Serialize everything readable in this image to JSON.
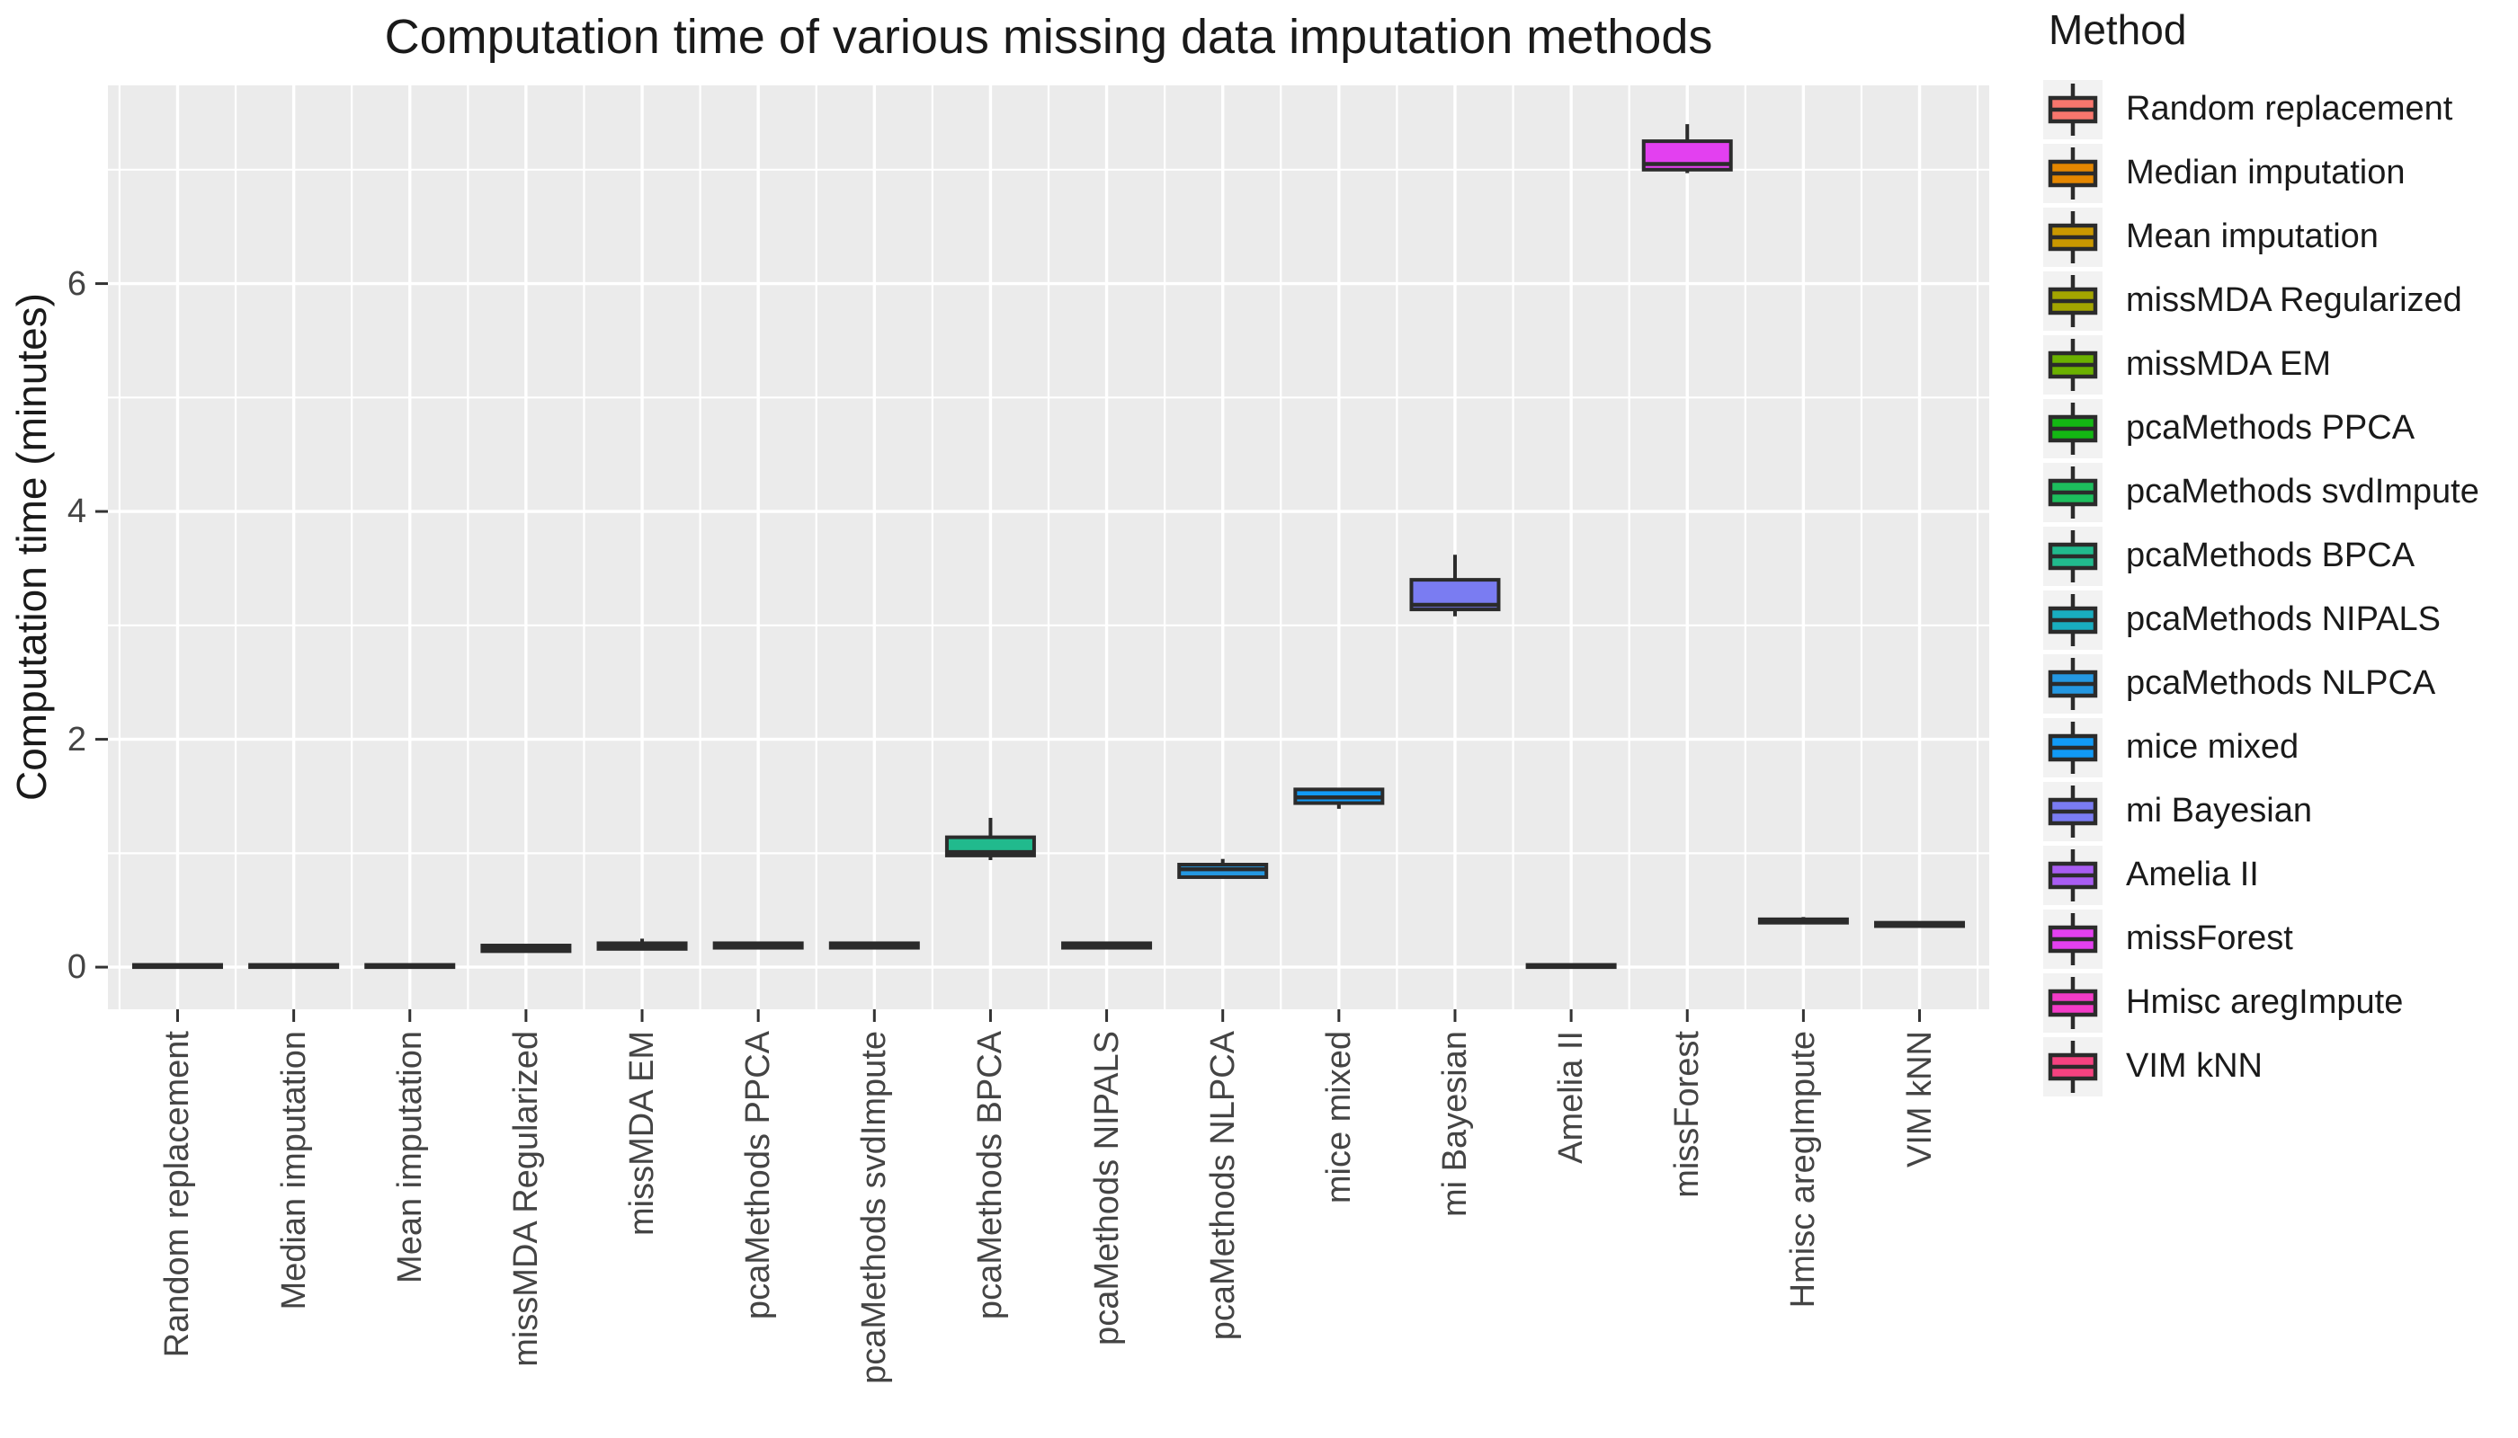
{
  "chart_data": {
    "type": "boxplot",
    "title": "Computation time of various missing data imputation methods",
    "xlabel": "",
    "ylabel": "Computation time (minutes)",
    "legend_title": "Method",
    "legend_position": "right",
    "grid": "on",
    "ylim": [
      -0.37,
      7.74
    ],
    "yticks": [
      0,
      2,
      4,
      6
    ],
    "yminor_gridlines": [
      1,
      3,
      5,
      7
    ],
    "colors_meta": {
      "panel_bg": "#EBEBEB",
      "grid_color": "#FFFFFF",
      "box_border": "#2B2B2B",
      "axis_text": "#444444",
      "tick_mark": "#333333",
      "legend_key_bg": "#F2F2F2"
    },
    "categories": [
      "Random replacement",
      "Median imputation",
      "Mean imputation",
      "missMDA Regularized",
      "missMDA EM",
      "pcaMethods PPCA",
      "pcaMethods svdImpute",
      "pcaMethods BPCA",
      "pcaMethods NIPALS",
      "pcaMethods NLPCA",
      "mice mixed",
      "mi Bayesian",
      "Amelia II",
      "missForest",
      "Hmisc aregImpute",
      "VIM kNN"
    ],
    "series": [
      {
        "name": "Random replacement",
        "color": "#F8766D",
        "low": 0.0,
        "q1": 0.0,
        "median": 0.01,
        "q3": 0.02,
        "high": 0.02
      },
      {
        "name": "Median imputation",
        "color": "#E58700",
        "low": 0.0,
        "q1": 0.0,
        "median": 0.01,
        "q3": 0.02,
        "high": 0.02
      },
      {
        "name": "Mean imputation",
        "color": "#C99800",
        "low": 0.0,
        "q1": 0.0,
        "median": 0.01,
        "q3": 0.02,
        "high": 0.02
      },
      {
        "name": "missMDA Regularized",
        "color": "#A3A500",
        "low": 0.13,
        "q1": 0.14,
        "median": 0.16,
        "q3": 0.19,
        "high": 0.2
      },
      {
        "name": "missMDA EM",
        "color": "#6BB100",
        "low": 0.15,
        "q1": 0.16,
        "median": 0.18,
        "q3": 0.21,
        "high": 0.25
      },
      {
        "name": "pcaMethods PPCA",
        "color": "#13B713",
        "low": 0.16,
        "q1": 0.17,
        "median": 0.19,
        "q3": 0.21,
        "high": 0.22
      },
      {
        "name": "pcaMethods svdImpute",
        "color": "#1DBE5D",
        "low": 0.16,
        "q1": 0.17,
        "median": 0.19,
        "q3": 0.21,
        "high": 0.22
      },
      {
        "name": "pcaMethods BPCA",
        "color": "#21BA8D",
        "low": 0.94,
        "q1": 0.98,
        "median": 1.01,
        "q3": 1.14,
        "high": 1.31
      },
      {
        "name": "pcaMethods NIPALS",
        "color": "#19ADBF",
        "low": 0.16,
        "q1": 0.17,
        "median": 0.19,
        "q3": 0.21,
        "high": 0.22
      },
      {
        "name": "pcaMethods NLPCA",
        "color": "#2498E2",
        "low": 0.78,
        "q1": 0.79,
        "median": 0.86,
        "q3": 0.9,
        "high": 0.95
      },
      {
        "name": "mice mixed",
        "color": "#119AF6",
        "low": 1.39,
        "q1": 1.44,
        "median": 1.49,
        "q3": 1.56,
        "high": 1.57
      },
      {
        "name": "mi Bayesian",
        "color": "#7A7CF2",
        "low": 3.08,
        "q1": 3.14,
        "median": 3.18,
        "q3": 3.4,
        "high": 3.62
      },
      {
        "name": "Amelia II",
        "color": "#A85CF2",
        "low": 0.0,
        "q1": 0.0,
        "median": 0.01,
        "q3": 0.02,
        "high": 0.02
      },
      {
        "name": "missForest",
        "color": "#E340F0",
        "low": 6.97,
        "q1": 7.0,
        "median": 7.05,
        "q3": 7.25,
        "high": 7.4
      },
      {
        "name": "Hmisc aregImpute",
        "color": "#F33BC7",
        "low": 0.38,
        "q1": 0.39,
        "median": 0.41,
        "q3": 0.42,
        "high": 0.44
      },
      {
        "name": "VIM kNN",
        "color": "#F54280",
        "low": 0.35,
        "q1": 0.36,
        "median": 0.37,
        "q3": 0.39,
        "high": 0.4
      }
    ]
  }
}
